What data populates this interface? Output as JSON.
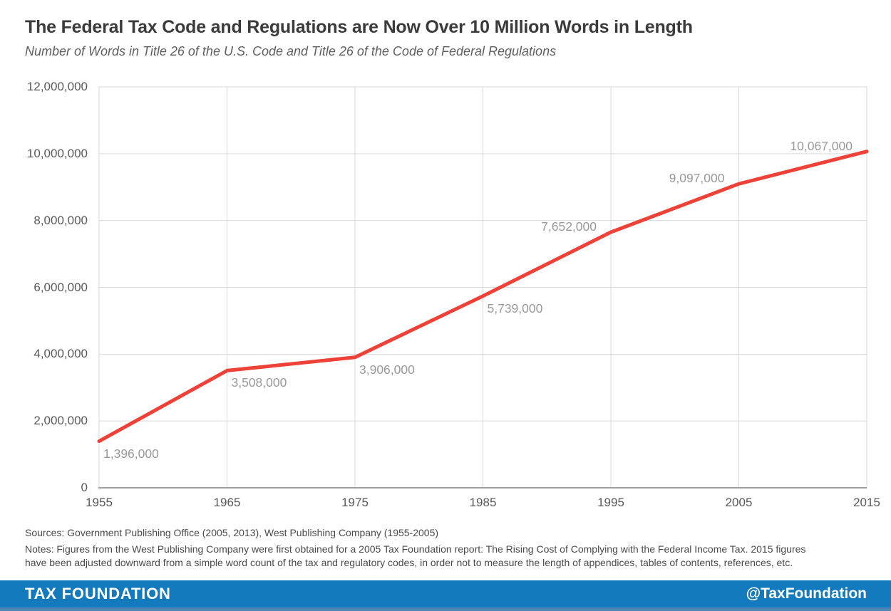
{
  "header": {
    "title": "The Federal Tax Code and Regulations are Now Over 10 Million Words in Length",
    "subtitle": "Number of Words in Title 26 of the U.S. Code and Title 26 of the Code of Federal Regulations"
  },
  "chart_data": {
    "type": "line",
    "title": "The Federal Tax Code and Regulations are Now Over 10 Million Words in Length",
    "subtitle": "Number of Words in Title 26 of the U.S. Code and Title 26 of the Code of Federal Regulations",
    "x": [
      1955,
      1965,
      1975,
      1985,
      1995,
      2005,
      2015
    ],
    "x_tick_labels": [
      "1955",
      "1965",
      "1975",
      "1985",
      "1995",
      "2005",
      "2015"
    ],
    "values": [
      1396000,
      3508000,
      3906000,
      5739000,
      7652000,
      9097000,
      10067000
    ],
    "point_labels": [
      "1,396,000",
      "3,508,000",
      "3,906,000",
      "5,739,000",
      "7,652,000",
      "9,097,000",
      "10,067,000"
    ],
    "label_positions": [
      "below",
      "below",
      "below",
      "below",
      "above",
      "above",
      "above"
    ],
    "ylim": [
      0,
      12000000
    ],
    "y_tick_values": [
      0,
      2000000,
      4000000,
      6000000,
      8000000,
      10000000,
      12000000
    ],
    "y_tick_labels": [
      "0",
      "2,000,000",
      "4,000,000",
      "6,000,000",
      "8,000,000",
      "10,000,000",
      "12,000,000"
    ],
    "xlabel": "",
    "ylabel": "",
    "grid": true,
    "legend_position": "none",
    "line_color": "#ee4137",
    "gridline_color": "#d9d9d9",
    "axis_color": "#a0a0a0"
  },
  "footnotes": {
    "sources": "Sources: Government Publishing Office (2005, 2013), West Publishing Company (1955-2005)",
    "notes_line1": "Notes: Figures from the West Publishing Company were first obtained for a 2005 Tax Foundation report: The Rising Cost of Complying with the Federal Income Tax. 2015 figures",
    "notes_line2": "have been adjusted downward from a simple word count of the tax and regulatory codes, in order not to measure the length of appendices, tables of contents, references, etc."
  },
  "footer": {
    "brand": "TAX FOUNDATION",
    "handle": "@TaxFoundation",
    "background": "#137abd",
    "strip_color": "#4d87b5"
  }
}
